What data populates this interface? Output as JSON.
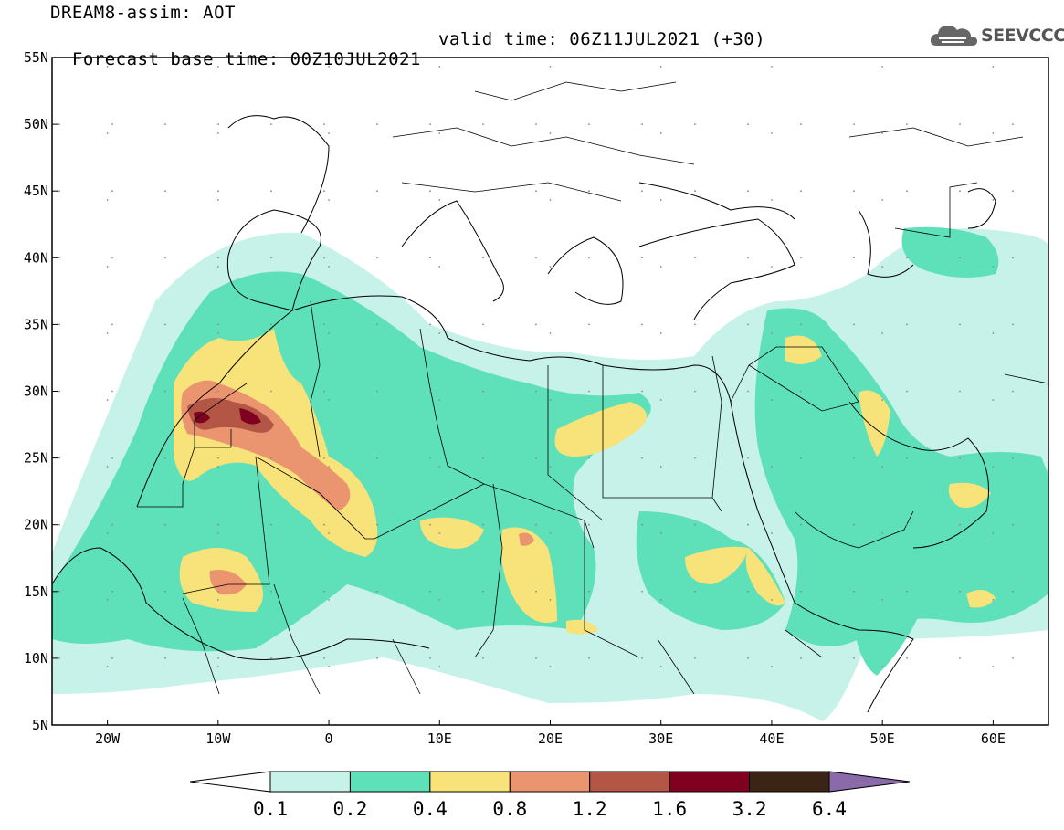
{
  "title": {
    "line1": "DREAM8-assim: AOT",
    "base_time": "Forecast base time: 00Z10JUL2021",
    "valid_time": "valid time: 06Z11JUL2021 (+30)"
  },
  "logo": {
    "text": "SEEVCCC",
    "icon": "cloud-icon"
  },
  "map": {
    "lon_range": [
      -25,
      65
    ],
    "lat_range": [
      5,
      55
    ],
    "lat_ticks": [
      {
        "value": 55,
        "label": "55N"
      },
      {
        "value": 50,
        "label": "50N"
      },
      {
        "value": 45,
        "label": "45N"
      },
      {
        "value": 40,
        "label": "40N"
      },
      {
        "value": 35,
        "label": "35N"
      },
      {
        "value": 30,
        "label": "30N"
      },
      {
        "value": 25,
        "label": "25N"
      },
      {
        "value": 20,
        "label": "20N"
      },
      {
        "value": 15,
        "label": "15N"
      },
      {
        "value": 10,
        "label": "10N"
      },
      {
        "value": 5,
        "label": "5N"
      }
    ],
    "lon_ticks": [
      {
        "value": -20,
        "label": "20W"
      },
      {
        "value": -10,
        "label": "10W"
      },
      {
        "value": 0,
        "label": "0"
      },
      {
        "value": 10,
        "label": "10E"
      },
      {
        "value": 20,
        "label": "20E"
      },
      {
        "value": 30,
        "label": "30E"
      },
      {
        "value": 40,
        "label": "40E"
      },
      {
        "value": 50,
        "label": "50E"
      },
      {
        "value": 60,
        "label": "60E"
      }
    ]
  },
  "colorbar": {
    "colors": [
      "#ffffff",
      "#c6f2ea",
      "#5ee0b8",
      "#f8e27a",
      "#ea9470",
      "#b45646",
      "#800020",
      "#3c2414",
      "#8a6aa8"
    ],
    "labels": [
      "0.1",
      "0.2",
      "0.4",
      "0.8",
      "1.2",
      "1.6",
      "3.2",
      "6.4"
    ]
  }
}
